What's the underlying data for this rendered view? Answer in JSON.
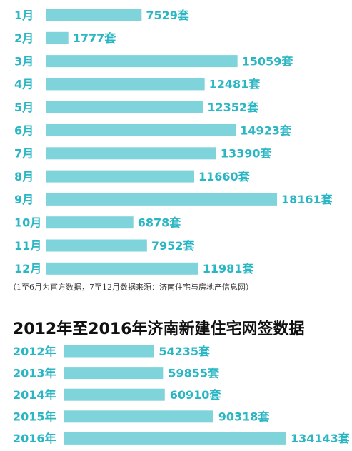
{
  "colors": {
    "bar": "#7fd4dc",
    "label": "#2bb6c4",
    "title": "#111111",
    "note": "#333333"
  },
  "chart_data": [
    {
      "type": "bar",
      "orientation": "horizontal",
      "title": "",
      "categories": [
        "1月",
        "2月",
        "3月",
        "4月",
        "5月",
        "6月",
        "7月",
        "8月",
        "9月",
        "10月",
        "11月",
        "12月"
      ],
      "values": [
        7529,
        1777,
        15059,
        12481,
        12352,
        14923,
        13390,
        11660,
        18161,
        6878,
        7952,
        11981
      ],
      "value_labels": [
        "7529套",
        "1777套",
        "15059套",
        "12481套",
        "12352套",
        "14923套",
        "13390套",
        "11660套",
        "18161套",
        "6878套",
        "7952套",
        "11981套"
      ],
      "note": "（1至6月为官方数据，7至12月数据来源：济南住宅与房地产信息网）"
    },
    {
      "type": "bar",
      "orientation": "horizontal",
      "title": "2012年至2016年济南新建住宅网签数据",
      "categories": [
        "2012年",
        "2013年",
        "2014年",
        "2015年",
        "2016年"
      ],
      "values": [
        54235,
        59855,
        60910,
        90318,
        134143
      ],
      "value_labels": [
        "54235套",
        "59855套",
        "60910套",
        "90318套",
        "134143套"
      ]
    }
  ]
}
